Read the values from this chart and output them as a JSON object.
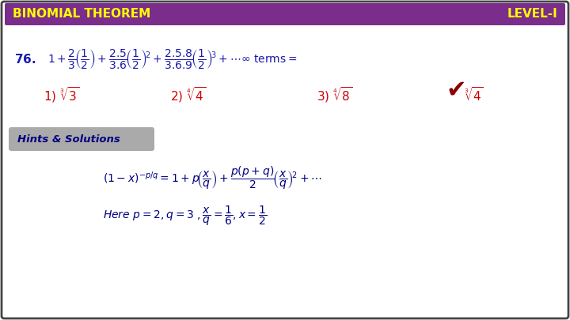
{
  "bg_color": "#ffffff",
  "border_color": "#444444",
  "header_bg": "#7b2d8b",
  "header_text_left": "BINOMIAL THEOREM",
  "header_text_right": "LEVEL-I",
  "header_text_color": "#ffff00",
  "question_number": "76.",
  "question_color": "#1a1aaa",
  "options_color": "#cc0000",
  "hints_bg": "#aaaaaa",
  "hints_text": "Hints & Solutions",
  "hints_text_color": "#000080",
  "solution_color": "#000080",
  "checkmark_color": "#8b0000"
}
